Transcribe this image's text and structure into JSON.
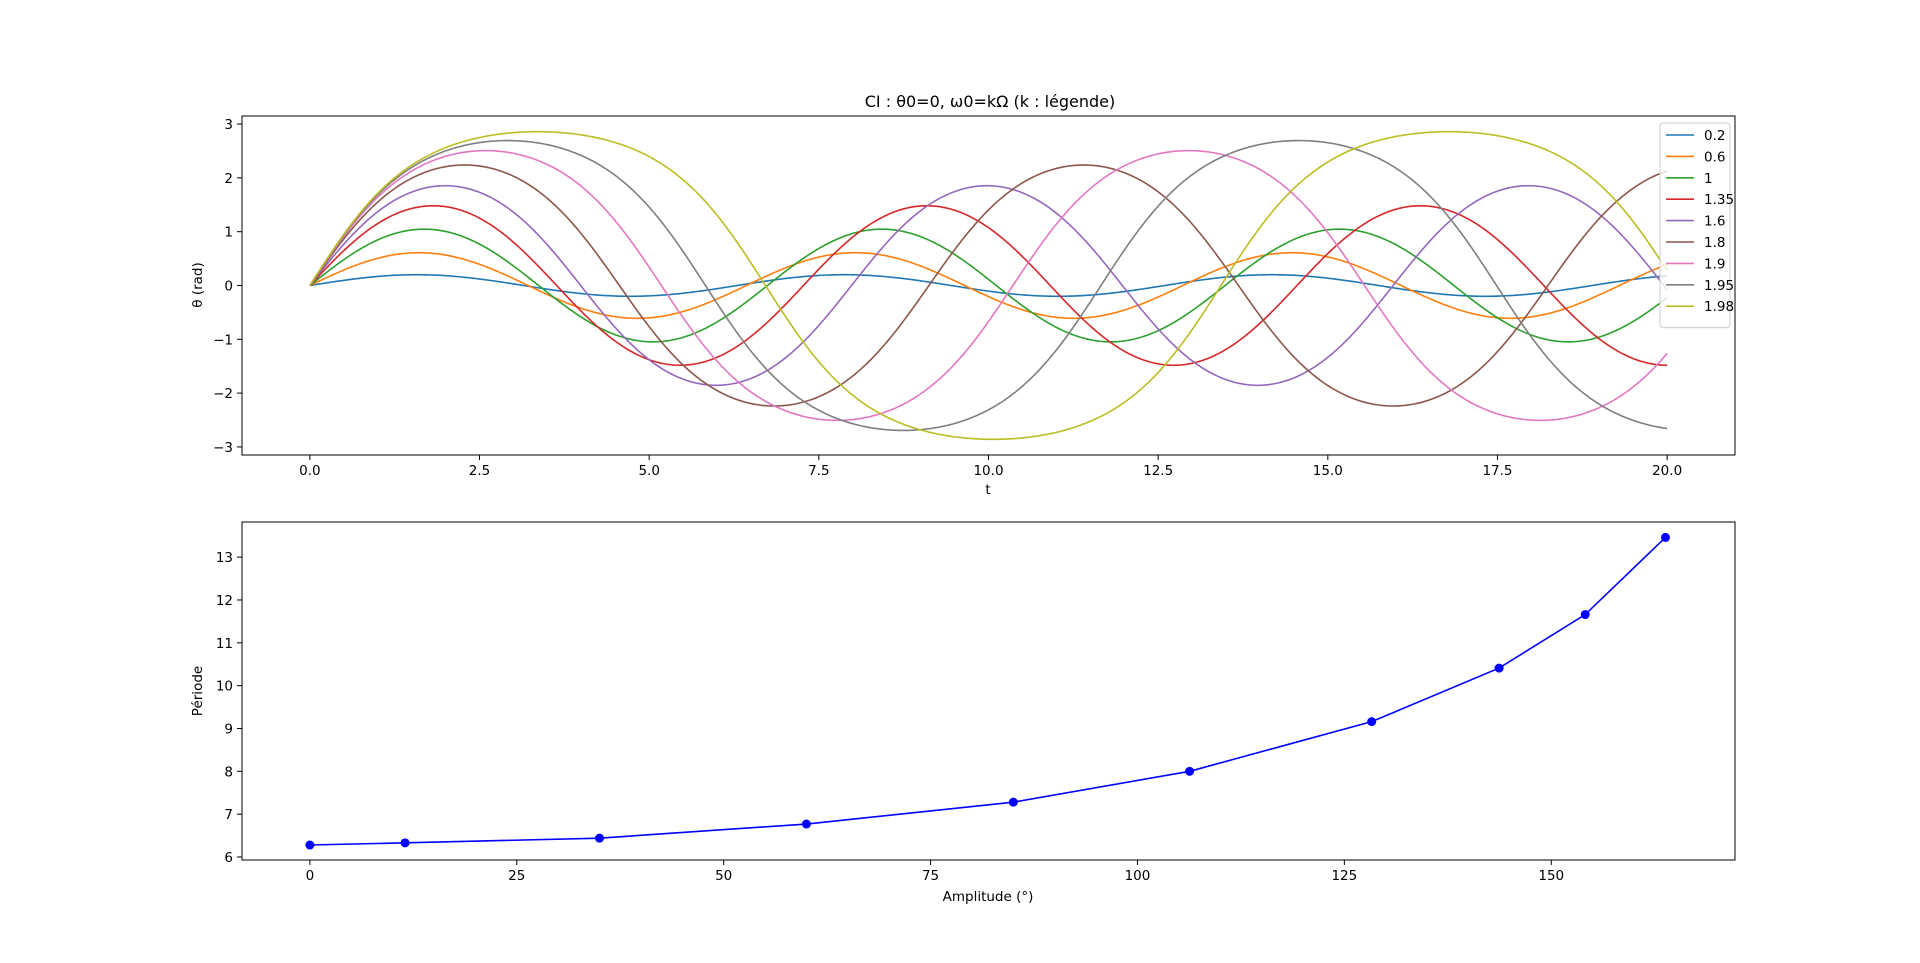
{
  "chart_data": [
    {
      "type": "line",
      "title": "CI : θ0=0, ω0=kΩ (k : légende)",
      "xlabel": "t",
      "ylabel": "θ (rad)",
      "xlim": [
        -1,
        21
      ],
      "ylim": [
        -3.15,
        3.15
      ],
      "xticks": [
        0,
        2.5,
        5,
        7.5,
        10,
        12.5,
        15,
        17.5,
        20
      ],
      "xtick_labels": [
        "0.0",
        "2.5",
        "5.0",
        "7.5",
        "10.0",
        "12.5",
        "15.0",
        "17.5",
        "20.0"
      ],
      "yticks": [
        -3,
        -2,
        -1,
        0,
        1,
        2,
        3
      ],
      "ytick_labels": [
        "−3",
        "−2",
        "−1",
        "0",
        "1",
        "2",
        "3"
      ],
      "grid": false,
      "legend_position": "top-right",
      "t_range": [
        0,
        20
      ],
      "series": [
        {
          "name": "0.2",
          "k": 0.2,
          "color": "#1f77b4"
        },
        {
          "name": "0.6",
          "k": 0.6,
          "color": "#ff7f0e"
        },
        {
          "name": "1",
          "k": 1,
          "color": "#2ca02c"
        },
        {
          "name": "1.35",
          "k": 1.35,
          "color": "#d62728"
        },
        {
          "name": "1.6",
          "k": 1.6,
          "color": "#9467bd"
        },
        {
          "name": "1.8",
          "k": 1.8,
          "color": "#8c564b"
        },
        {
          "name": "1.9",
          "k": 1.9,
          "color": "#e377c2"
        },
        {
          "name": "1.95",
          "k": 1.95,
          "color": "#7f7f7f"
        },
        {
          "name": "1.98",
          "k": 1.98,
          "color": "#bcbd22"
        }
      ]
    },
    {
      "type": "line",
      "title": "",
      "xlabel": "Amplitude (°)",
      "ylabel": "Période",
      "xlim": [
        -8.2,
        172.2
      ],
      "ylim": [
        5.93,
        13.82
      ],
      "xticks": [
        0,
        25,
        50,
        75,
        100,
        125,
        150
      ],
      "xtick_labels": [
        "0",
        "25",
        "50",
        "75",
        "100",
        "125",
        "150"
      ],
      "yticks": [
        6,
        7,
        8,
        9,
        10,
        11,
        12,
        13
      ],
      "ytick_labels": [
        "6",
        "7",
        "8",
        "9",
        "10",
        "11",
        "12",
        "13"
      ],
      "grid": false,
      "color": "#0000ff",
      "x": [
        0,
        11.5,
        35,
        60,
        85,
        106.3,
        128.3,
        143.7,
        154.1,
        163.8
      ],
      "y": [
        6.28,
        6.33,
        6.44,
        6.77,
        7.28,
        8.0,
        9.16,
        10.41,
        11.66,
        13.46
      ]
    }
  ]
}
